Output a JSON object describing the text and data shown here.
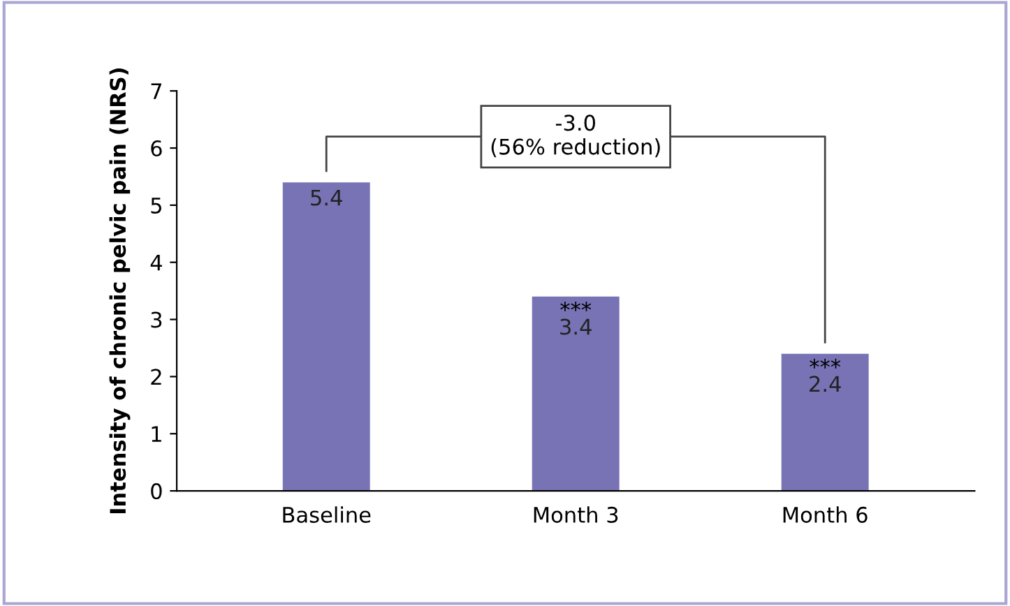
{
  "chart_data": {
    "type": "bar",
    "ylabel": "Intensity of chronic pelvic pain (NRS)",
    "categories": [
      "Baseline",
      "Month 3",
      "Month 6"
    ],
    "values": [
      5.4,
      3.4,
      2.4
    ],
    "color": "#7873b5",
    "data_labels": true,
    "ylim": [
      0,
      7
    ],
    "yticks": [
      0,
      1,
      2,
      3,
      4,
      5,
      6,
      7
    ],
    "annotations": [
      "-3.0\n(56% reduction)",
      {
        "text": "***",
        "x": "Month 3",
        "y": 3.4
      },
      {
        "text": "***",
        "x": "Month 6",
        "y": 2.4
      }
    ]
  }
}
